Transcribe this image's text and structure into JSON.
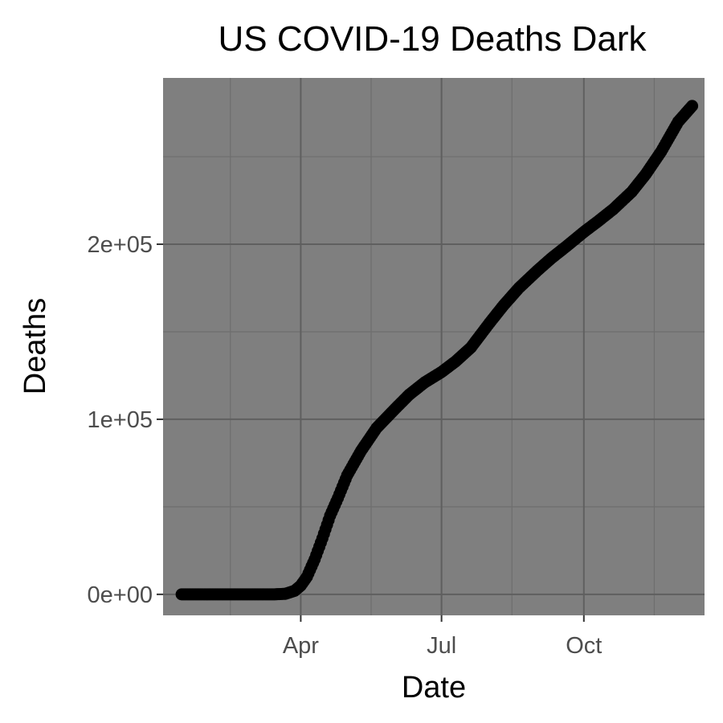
{
  "chart_data": {
    "type": "scatter",
    "title": "US COVID-19 Deaths Dark",
    "xlabel": "Date",
    "ylabel": "Deaths",
    "x_scale": "date",
    "xlim": [
      "2020-01-03",
      "2020-12-18"
    ],
    "ylim": [
      -12000,
      295000
    ],
    "x_ticks": [
      {
        "date": "2020-04-01",
        "label": "Apr"
      },
      {
        "date": "2020-07-01",
        "label": "Jul"
      },
      {
        "date": "2020-10-01",
        "label": "Oct"
      }
    ],
    "y_ticks": [
      {
        "value": 0,
        "label": "0e+00"
      },
      {
        "value": 100000,
        "label": "1e+05"
      },
      {
        "value": 200000,
        "label": "2e+05"
      }
    ],
    "grid": true,
    "theme": {
      "panel_background": "#7f7f7f",
      "grid_major": "#5f5f5f",
      "grid_minor": "#6e6e6e",
      "point_color": "#000000"
    },
    "series": [
      {
        "marker": "filled-circle",
        "x": [
          "2020-01-15",
          "2020-02-01",
          "2020-02-15",
          "2020-03-01",
          "2020-03-15",
          "2020-03-22",
          "2020-03-28",
          "2020-04-01",
          "2020-04-05",
          "2020-04-10",
          "2020-04-15",
          "2020-04-20",
          "2020-04-25",
          "2020-05-01",
          "2020-05-10",
          "2020-05-20",
          "2020-06-01",
          "2020-06-10",
          "2020-06-20",
          "2020-07-01",
          "2020-07-10",
          "2020-07-20",
          "2020-08-01",
          "2020-08-10",
          "2020-08-20",
          "2020-09-01",
          "2020-09-10",
          "2020-09-20",
          "2020-10-01",
          "2020-10-10",
          "2020-10-20",
          "2020-11-01",
          "2020-11-10",
          "2020-11-20",
          "2020-12-01",
          "2020-12-10"
        ],
        "y": [
          0,
          0,
          0,
          0,
          0,
          300,
          2000,
          5000,
          10000,
          20000,
          32000,
          45000,
          55000,
          68000,
          82000,
          95000,
          106000,
          114000,
          121000,
          127000,
          133000,
          141000,
          155000,
          165000,
          175000,
          185000,
          192000,
          199000,
          207000,
          213000,
          220000,
          230000,
          240000,
          253000,
          270000,
          279000
        ]
      }
    ]
  }
}
